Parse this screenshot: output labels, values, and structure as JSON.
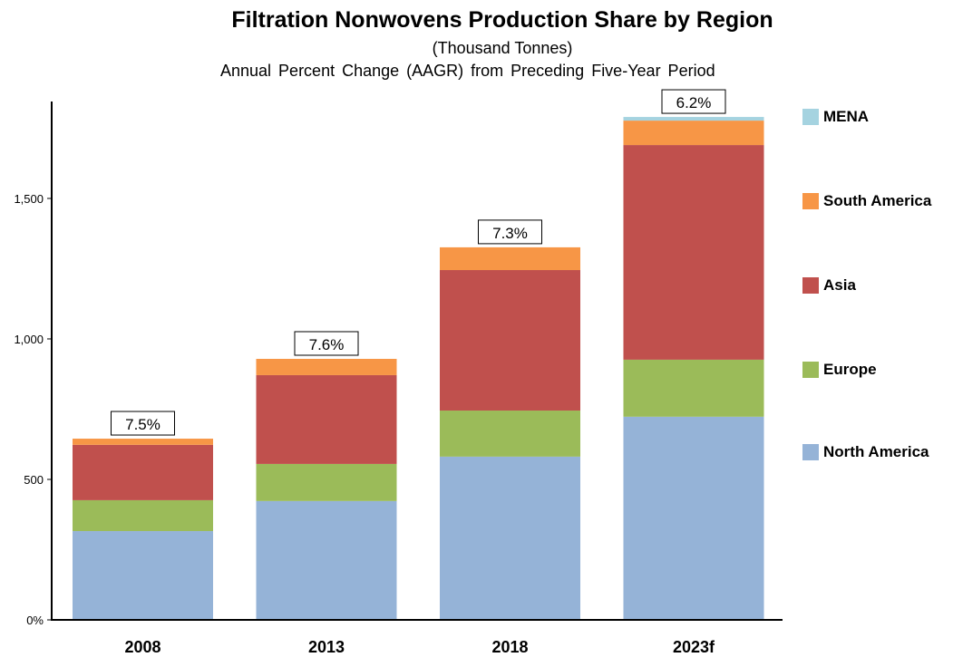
{
  "chart_data": {
    "type": "bar",
    "stacked": true,
    "title": "Filtration Nonwovens Production Share by Region",
    "subtitle": "(Thousand Tonnes)",
    "subtitle2": "Annual Percent Change (AAGR) from Preceding Five-Year Period",
    "xlabel": "",
    "ylabel": "",
    "ylim": [
      0,
      1845
    ],
    "yticks": [
      0,
      500,
      1000,
      1500
    ],
    "ytick_labels": [
      "0%",
      "500",
      "1,000",
      "1,500"
    ],
    "categories": [
      "2008",
      "2013",
      "2018",
      "2023f"
    ],
    "series": [
      {
        "name": "North America",
        "color": "#95b3d7",
        "values": [
          316,
          423,
          581,
          723
        ]
      },
      {
        "name": "Europe",
        "color": "#9bbb59",
        "values": [
          110,
          132,
          164,
          203
        ]
      },
      {
        "name": "Asia",
        "color": "#c0504d",
        "values": [
          197,
          316,
          500,
          764
        ]
      },
      {
        "name": "South America",
        "color": "#f79646",
        "values": [
          22,
          58,
          81,
          87
        ]
      },
      {
        "name": "MENA",
        "color": "#a5d3e0",
        "values": [
          0,
          0,
          0,
          13
        ]
      }
    ],
    "annotations": [
      "7.5%",
      "7.6%",
      "7.3%",
      "6.2%"
    ],
    "legend_position": "right",
    "legend_order": [
      "MENA",
      "South America",
      "Asia",
      "Europe",
      "North America"
    ],
    "grid": false
  }
}
